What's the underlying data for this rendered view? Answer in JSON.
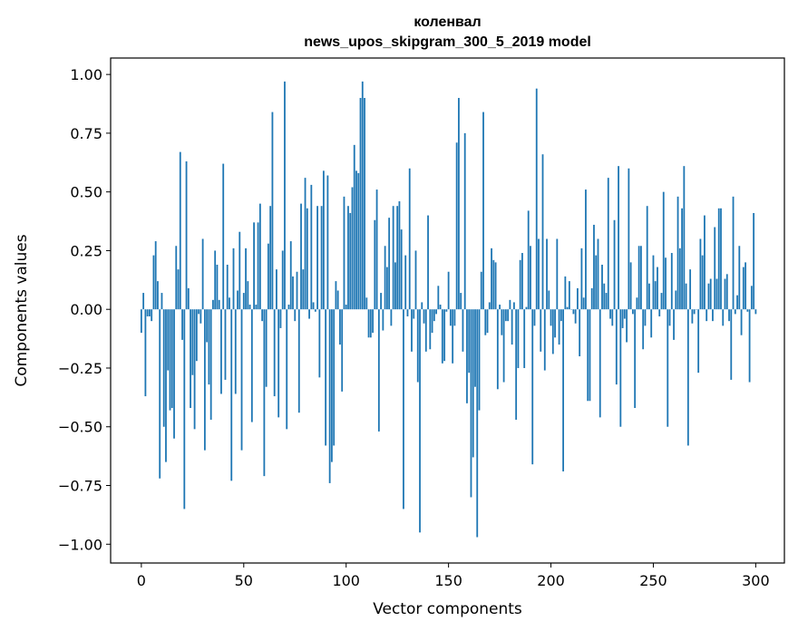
{
  "chart_data": {
    "type": "bar",
    "title": "коленвал",
    "subtitle": "news_upos_skipgram_300_5_2019 model",
    "xlabel": "Vector components",
    "ylabel": "Components values",
    "xlim": [
      -15,
      314
    ],
    "ylim": [
      -1.08,
      1.07
    ],
    "x_ticks": [
      0,
      50,
      100,
      150,
      200,
      250,
      300
    ],
    "x_tick_labels": [
      "0",
      "50",
      "100",
      "150",
      "200",
      "250",
      "300"
    ],
    "y_ticks": [
      1.0,
      0.75,
      0.5,
      0.25,
      0.0,
      -0.25,
      -0.5,
      -0.75,
      -1.0
    ],
    "y_tick_labels": [
      "1.00",
      "0.75",
      "0.50",
      "0.25",
      "0.00",
      "−0.25",
      "−0.50",
      "−0.75",
      "−1.00"
    ],
    "bar_color": "#1f77b4",
    "grid": false,
    "values": [
      -0.1,
      0.07,
      -0.37,
      -0.03,
      -0.03,
      -0.05,
      0.23,
      0.29,
      0.12,
      -0.72,
      0.07,
      -0.5,
      -0.65,
      -0.26,
      -0.43,
      -0.42,
      -0.55,
      0.27,
      0.17,
      0.67,
      -0.13,
      -0.85,
      0.63,
      0.09,
      -0.42,
      -0.28,
      -0.51,
      -0.22,
      -0.02,
      -0.06,
      0.3,
      -0.6,
      -0.14,
      -0.32,
      -0.47,
      0.04,
      0.25,
      0.19,
      0.04,
      -0.36,
      0.62,
      -0.3,
      0.19,
      0.05,
      -0.73,
      0.26,
      -0.36,
      0.08,
      0.33,
      -0.6,
      0.07,
      0.26,
      0.12,
      0.02,
      -0.48,
      0.37,
      0.02,
      0.37,
      0.45,
      -0.05,
      -0.71,
      -0.33,
      0.28,
      0.44,
      0.84,
      -0.37,
      0.17,
      -0.46,
      -0.08,
      0.25,
      0.97,
      -0.51,
      0.02,
      0.29,
      0.14,
      -0.05,
      0.16,
      -0.44,
      0.45,
      0.17,
      0.56,
      0.43,
      -0.04,
      0.53,
      0.03,
      -0.01,
      0.44,
      -0.29,
      0.44,
      0.59,
      -0.58,
      0.57,
      -0.74,
      -0.65,
      -0.58,
      0.12,
      0.08,
      -0.15,
      -0.35,
      0.48,
      0.02,
      0.44,
      0.41,
      0.52,
      0.7,
      0.59,
      0.58,
      0.9,
      0.97,
      0.9,
      0.05,
      -0.12,
      -0.12,
      -0.1,
      0.38,
      0.51,
      -0.52,
      0.07,
      -0.09,
      0.27,
      0.18,
      0.39,
      -0.07,
      0.44,
      0.2,
      0.44,
      0.46,
      0.34,
      -0.85,
      0.23,
      -0.03,
      0.6,
      -0.18,
      -0.04,
      0.25,
      -0.31,
      -0.95,
      0.03,
      -0.06,
      -0.18,
      0.4,
      -0.17,
      -0.1,
      -0.05,
      -0.02,
      0.1,
      0.02,
      -0.23,
      -0.22,
      -0.01,
      0.16,
      -0.07,
      -0.23,
      -0.07,
      0.71,
      0.9,
      0.07,
      -0.18,
      0.75,
      -0.4,
      -0.27,
      -0.8,
      -0.63,
      -0.33,
      -0.97,
      -0.43,
      0.16,
      0.84,
      -0.11,
      -0.1,
      0.03,
      0.26,
      0.21,
      0.2,
      -0.34,
      0.02,
      -0.11,
      -0.31,
      -0.05,
      -0.05,
      0.04,
      -0.15,
      0.03,
      -0.47,
      -0.25,
      0.21,
      0.24,
      -0.25,
      0.01,
      0.42,
      0.27,
      -0.66,
      -0.07,
      0.94,
      0.3,
      -0.18,
      0.66,
      -0.26,
      0.3,
      0.08,
      -0.07,
      -0.19,
      -0.12,
      0.3,
      -0.15,
      -0.05,
      -0.69,
      0.14,
      0.01,
      0.12,
      0.0,
      -0.02,
      -0.06,
      0.09,
      -0.2,
      0.26,
      0.05,
      0.51,
      -0.39,
      -0.39,
      0.09,
      0.36,
      0.23,
      0.3,
      -0.46,
      0.19,
      0.11,
      0.07,
      0.56,
      -0.04,
      -0.07,
      0.38,
      -0.32,
      0.61,
      -0.5,
      -0.08,
      -0.04,
      -0.14,
      0.6,
      0.2,
      -0.02,
      -0.42,
      0.05,
      0.27,
      0.27,
      -0.17,
      -0.07,
      0.44,
      0.11,
      -0.12,
      0.23,
      0.12,
      0.18,
      -0.03,
      0.07,
      0.5,
      0.22,
      -0.5,
      -0.07,
      0.24,
      -0.13,
      0.08,
      0.48,
      0.26,
      0.43,
      0.61,
      0.11,
      -0.58,
      0.17,
      -0.06,
      -0.02,
      0.0,
      -0.27,
      0.3,
      0.23,
      0.4,
      -0.05,
      0.11,
      0.13,
      -0.05,
      0.35,
      0.13,
      0.43,
      0.43,
      -0.07,
      0.13,
      0.15,
      -0.05,
      -0.3,
      0.48,
      -0.02,
      0.06,
      0.27,
      -0.11,
      0.18,
      0.2,
      -0.01,
      -0.31,
      0.1,
      0.41,
      -0.02
    ]
  }
}
